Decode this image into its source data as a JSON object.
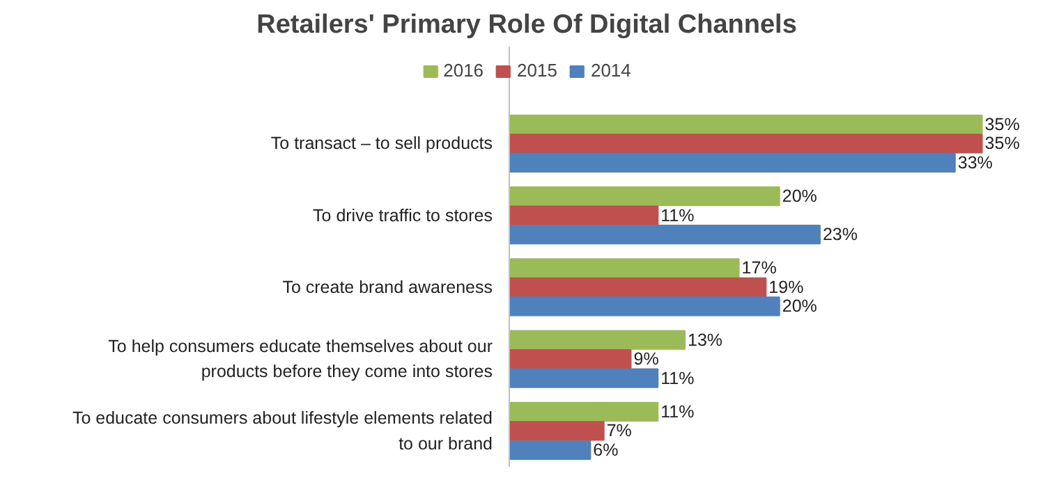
{
  "chart_data": {
    "type": "bar",
    "orientation": "horizontal",
    "title": "Retailers' Primary Role Of Digital Channels",
    "categories": [
      "To transact – to sell products",
      "To drive traffic to stores",
      "To create brand awareness",
      "To help consumers educate themselves about our products before they come into stores",
      "To educate consumers about lifestyle elements related to our brand"
    ],
    "series": [
      {
        "name": "2016",
        "color": "#9bbb59",
        "values": [
          35,
          20,
          17,
          13,
          11
        ],
        "value_labels": [
          "35%",
          "20%",
          "17%",
          "13%",
          "11%"
        ]
      },
      {
        "name": "2015",
        "color": "#c0504d",
        "values": [
          35,
          11,
          19,
          9,
          7
        ],
        "value_labels": [
          "35%",
          "11%",
          "19%",
          "9%",
          "7%"
        ]
      },
      {
        "name": "2014",
        "color": "#4f81bd",
        "values": [
          33,
          23,
          20,
          11,
          6
        ],
        "value_labels": [
          "33%",
          "23%",
          "20%",
          "11%",
          "6%"
        ]
      }
    ],
    "legend": "top",
    "grid": false
  }
}
